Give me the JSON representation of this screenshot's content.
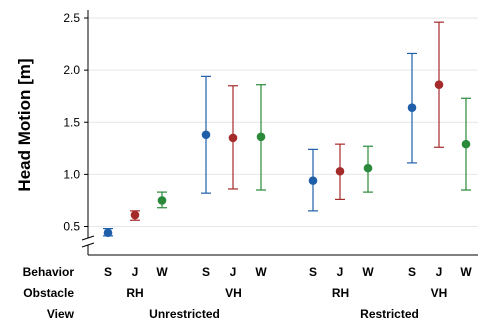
{
  "chart_data": {
    "type": "scatter",
    "ylabel": "Head Motion [m]",
    "ylim": [
      0.3,
      2.55
    ],
    "yticks": [
      "0.5",
      "1.0",
      "1.5",
      "2.0",
      "2.5"
    ],
    "axis_break": true,
    "row_labels": {
      "behavior": "Behavior",
      "obstacle": "Obstacle",
      "view": "View"
    },
    "colors": {
      "S": "#1f5faa",
      "J": "#a52a2a",
      "W": "#2a8a3a"
    },
    "points": [
      {
        "behavior": "S",
        "obstacle": "RH",
        "view": "Unrestricted",
        "mean": 0.44,
        "low": 0.41,
        "high": 0.48
      },
      {
        "behavior": "J",
        "obstacle": "RH",
        "view": "Unrestricted",
        "mean": 0.61,
        "low": 0.56,
        "high": 0.65
      },
      {
        "behavior": "W",
        "obstacle": "RH",
        "view": "Unrestricted",
        "mean": 0.75,
        "low": 0.68,
        "high": 0.83
      },
      {
        "behavior": "S",
        "obstacle": "VH",
        "view": "Unrestricted",
        "mean": 1.38,
        "low": 0.82,
        "high": 1.94
      },
      {
        "behavior": "J",
        "obstacle": "VH",
        "view": "Unrestricted",
        "mean": 1.35,
        "low": 0.86,
        "high": 1.85
      },
      {
        "behavior": "W",
        "obstacle": "VH",
        "view": "Unrestricted",
        "mean": 1.36,
        "low": 0.85,
        "high": 1.86
      },
      {
        "behavior": "S",
        "obstacle": "RH",
        "view": "Restricted",
        "mean": 0.94,
        "low": 0.65,
        "high": 1.24
      },
      {
        "behavior": "J",
        "obstacle": "RH",
        "view": "Restricted",
        "mean": 1.03,
        "low": 0.76,
        "high": 1.29
      },
      {
        "behavior": "W",
        "obstacle": "RH",
        "view": "Restricted",
        "mean": 1.06,
        "low": 0.83,
        "high": 1.27
      },
      {
        "behavior": "S",
        "obstacle": "VH",
        "view": "Restricted",
        "mean": 1.64,
        "low": 1.11,
        "high": 2.16
      },
      {
        "behavior": "J",
        "obstacle": "VH",
        "view": "Restricted",
        "mean": 1.86,
        "low": 1.26,
        "high": 2.46
      },
      {
        "behavior": "W",
        "obstacle": "VH",
        "view": "Restricted",
        "mean": 1.29,
        "low": 0.85,
        "high": 1.73
      }
    ]
  }
}
